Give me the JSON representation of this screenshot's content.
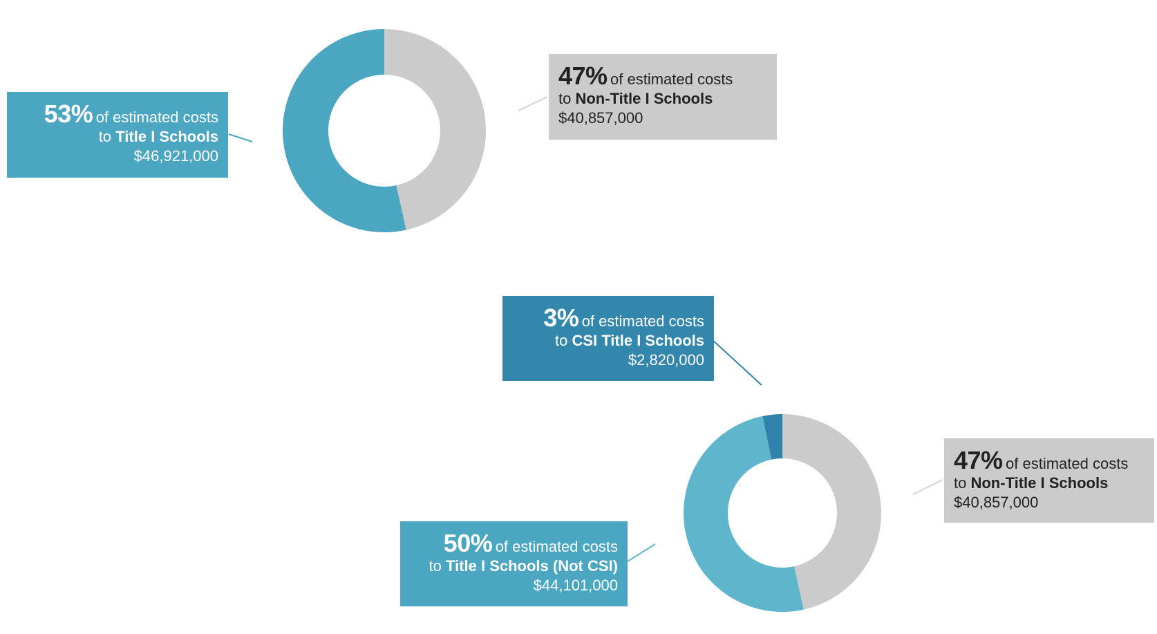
{
  "colors": {
    "non_title": "#cbcbcb",
    "title_one": "#4ba6c1",
    "title_not_csi": "#5fb5cc",
    "csi": "#2f82aa"
  },
  "chart_data": [
    {
      "type": "pie",
      "variant": "donut",
      "slices": [
        {
          "label": "Non-Title I Schools",
          "percent": 47,
          "amount": "$40,857,000",
          "value": 40857000,
          "color": "#cbcbcb"
        },
        {
          "label": "Title I Schools",
          "percent": 53,
          "amount": "$46,921,000",
          "value": 46921000,
          "color": "#4ba6c1"
        }
      ]
    },
    {
      "type": "pie",
      "variant": "donut",
      "slices": [
        {
          "label": "Non-Title I Schools",
          "percent": 47,
          "amount": "$40,857,000",
          "value": 40857000,
          "color": "#cbcbcb"
        },
        {
          "label": "Title I Schools (Not CSI)",
          "percent": 50,
          "amount": "$44,101,000",
          "value": 44101000,
          "color": "#5fb5cc"
        },
        {
          "label": "CSI Title I Schools",
          "percent": 3,
          "amount": "$2,820,000",
          "value": 2820000,
          "color": "#2f82aa"
        }
      ]
    }
  ],
  "labels": {
    "chart1_non_title": {
      "pct": "47%",
      "desc": "of estimated costs",
      "prefix": "to",
      "name": "Non-Title I Schools",
      "amount": "$40,857,000"
    },
    "chart1_title": {
      "pct": "53%",
      "desc": "of estimated costs",
      "prefix": "to",
      "name": "Title I Schools",
      "amount": "$46,921,000"
    },
    "chart2_csi": {
      "pct": "3%",
      "desc": "of estimated costs",
      "prefix": "to",
      "name": "CSI Title I Schools",
      "amount": "$2,820,000"
    },
    "chart2_non_title": {
      "pct": "47%",
      "desc": "of estimated costs",
      "prefix": "to",
      "name": "Non-Title I Schools",
      "amount": "$40,857,000"
    },
    "chart2_title_not_csi": {
      "pct": "50%",
      "desc": "of estimated costs",
      "prefix": "to",
      "name": "Title I Schools (Not CSI)",
      "amount": "$44,101,000"
    }
  }
}
